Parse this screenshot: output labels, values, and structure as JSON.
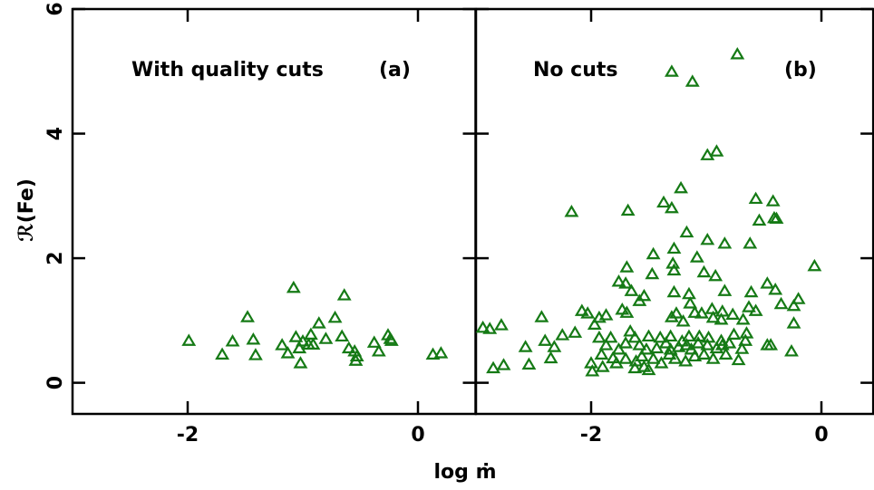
{
  "chart_data": [
    {
      "type": "scatter",
      "annotation": "With quality cuts",
      "panel_label": "(a)",
      "xlabel": "log ṁ",
      "ylabel": "ℛ(Fe)",
      "color": "#157a15",
      "marker": "triangle",
      "xlim": [
        -3,
        0.5
      ],
      "ylim": [
        -0.5,
        6
      ],
      "xticks": [
        -2,
        0
      ],
      "yticks": [
        0,
        2,
        4,
        6
      ],
      "x": [
        -1.99,
        -1.7,
        -1.61,
        -1.48,
        -1.43,
        -1.41,
        -1.18,
        -1.13,
        -1.08,
        -1.06,
        -1.03,
        -1.02,
        -1.0,
        -0.95,
        -0.93,
        -0.91,
        -0.86,
        -0.8,
        -0.72,
        -0.66,
        -0.64,
        -0.6,
        -0.55,
        -0.54,
        -0.53,
        -0.38,
        -0.34,
        -0.26,
        -0.24,
        -0.23,
        0.13,
        0.2
      ],
      "y": [
        0.67,
        0.45,
        0.66,
        1.05,
        0.69,
        0.44,
        0.6,
        0.47,
        1.52,
        0.73,
        0.55,
        0.31,
        0.66,
        0.61,
        0.77,
        0.61,
        0.95,
        0.7,
        1.04,
        0.74,
        1.4,
        0.55,
        0.5,
        0.35,
        0.42,
        0.64,
        0.5,
        0.76,
        0.7,
        0.67,
        0.45,
        0.47
      ]
    },
    {
      "type": "scatter",
      "annotation": "No cuts",
      "panel_label": "(b)",
      "color": "#157a15",
      "marker": "triangle",
      "xlim": [
        -3,
        0.45
      ],
      "ylim": [
        -0.5,
        6
      ],
      "xticks": [
        -2,
        0
      ],
      "yticks": [
        0,
        2,
        4,
        6
      ],
      "x": [
        -0.73,
        -1.3,
        -1.12,
        -0.91,
        -0.99,
        -0.57,
        -0.42,
        -1.22,
        -1.37,
        -1.3,
        -2.17,
        -1.68,
        -0.54,
        -0.41,
        -0.39,
        -0.06,
        -0.99,
        -0.84,
        -0.62,
        -1.17,
        -1.46,
        -1.28,
        -1.08,
        -1.69,
        -1.29,
        -1.28,
        -1.47,
        -1.02,
        -0.92,
        -1.76,
        -1.7,
        -1.65,
        -1.28,
        -1.15,
        -0.84,
        -0.61,
        -0.47,
        -0.4,
        -0.2,
        -0.24,
        -0.35,
        -1.58,
        -1.54,
        -1.14,
        -1.1,
        -1.3,
        -1.26,
        -1.2,
        -1.04,
        -0.95,
        -0.86,
        -0.77,
        -0.94,
        -0.87,
        -0.63,
        -0.57,
        -0.68,
        -2.08,
        -2.03,
        -1.97,
        -1.87,
        -1.93,
        -1.73,
        -1.69,
        -2.43,
        -2.94,
        -2.88,
        -2.78,
        -2.25,
        -2.14,
        -0.24,
        -2.4,
        -2.57,
        -2.32,
        -1.83,
        -2.85,
        -2.76,
        -2.54,
        -2.35,
        -0.26,
        -0.47,
        -0.44,
        -2.0,
        -1.99,
        -1.9,
        -1.87,
        -1.91,
        -1.93,
        -1.81,
        -1.78,
        -1.76,
        -1.7,
        -1.66,
        -1.62,
        -1.58,
        -1.56,
        -1.54,
        -1.52,
        -1.5,
        -1.46,
        -1.43,
        -1.4,
        -1.39,
        -1.35,
        -1.32,
        -1.31,
        -1.27,
        -1.24,
        -1.21,
        -1.18,
        -1.15,
        -1.13,
        -1.1,
        -1.07,
        -1.06,
        -1.02,
        -0.99,
        -0.98,
        -0.94,
        -0.91,
        -0.87,
        -0.83,
        -0.8,
        -0.76,
        -0.72,
        -0.69,
        -0.66,
        -1.62,
        -1.5,
        -1.61,
        -1.7,
        -1.31,
        -1.17,
        -0.86,
        -0.65
      ],
      "y": [
        5.27,
        4.99,
        4.83,
        3.71,
        3.65,
        2.95,
        2.91,
        3.12,
        2.89,
        2.8,
        2.74,
        2.76,
        2.6,
        2.64,
        2.63,
        1.87,
        2.29,
        2.23,
        2.23,
        2.41,
        2.06,
        2.15,
        2.01,
        1.85,
        1.91,
        1.8,
        1.74,
        1.77,
        1.71,
        1.62,
        1.59,
        1.47,
        1.45,
        1.42,
        1.47,
        1.45,
        1.59,
        1.49,
        1.34,
        1.23,
        1.26,
        1.31,
        1.39,
        1.27,
        1.12,
        1.05,
        1.11,
        0.98,
        1.11,
        1.18,
        1.14,
        1.09,
        1.04,
        1.01,
        1.21,
        1.15,
        1.01,
        1.15,
        1.11,
        0.93,
        1.08,
        1.04,
        1.17,
        1.12,
        1.05,
        0.88,
        0.86,
        0.92,
        0.76,
        0.8,
        0.95,
        0.67,
        0.57,
        0.57,
        0.72,
        0.23,
        0.28,
        0.29,
        0.39,
        0.5,
        0.6,
        0.6,
        0.31,
        0.18,
        0.25,
        0.6,
        0.45,
        0.72,
        0.39,
        0.31,
        0.53,
        0.63,
        0.82,
        0.72,
        0.6,
        0.42,
        0.25,
        0.53,
        0.74,
        0.38,
        0.55,
        0.72,
        0.31,
        0.63,
        0.45,
        0.74,
        0.38,
        0.57,
        0.66,
        0.34,
        0.74,
        0.53,
        0.42,
        0.63,
        0.74,
        0.45,
        0.6,
        0.72,
        0.38,
        0.55,
        0.67,
        0.45,
        0.63,
        0.77,
        0.36,
        0.54,
        0.67,
        0.23,
        0.2,
        0.34,
        0.38,
        0.53,
        0.6,
        0.6,
        0.79
      ]
    }
  ]
}
